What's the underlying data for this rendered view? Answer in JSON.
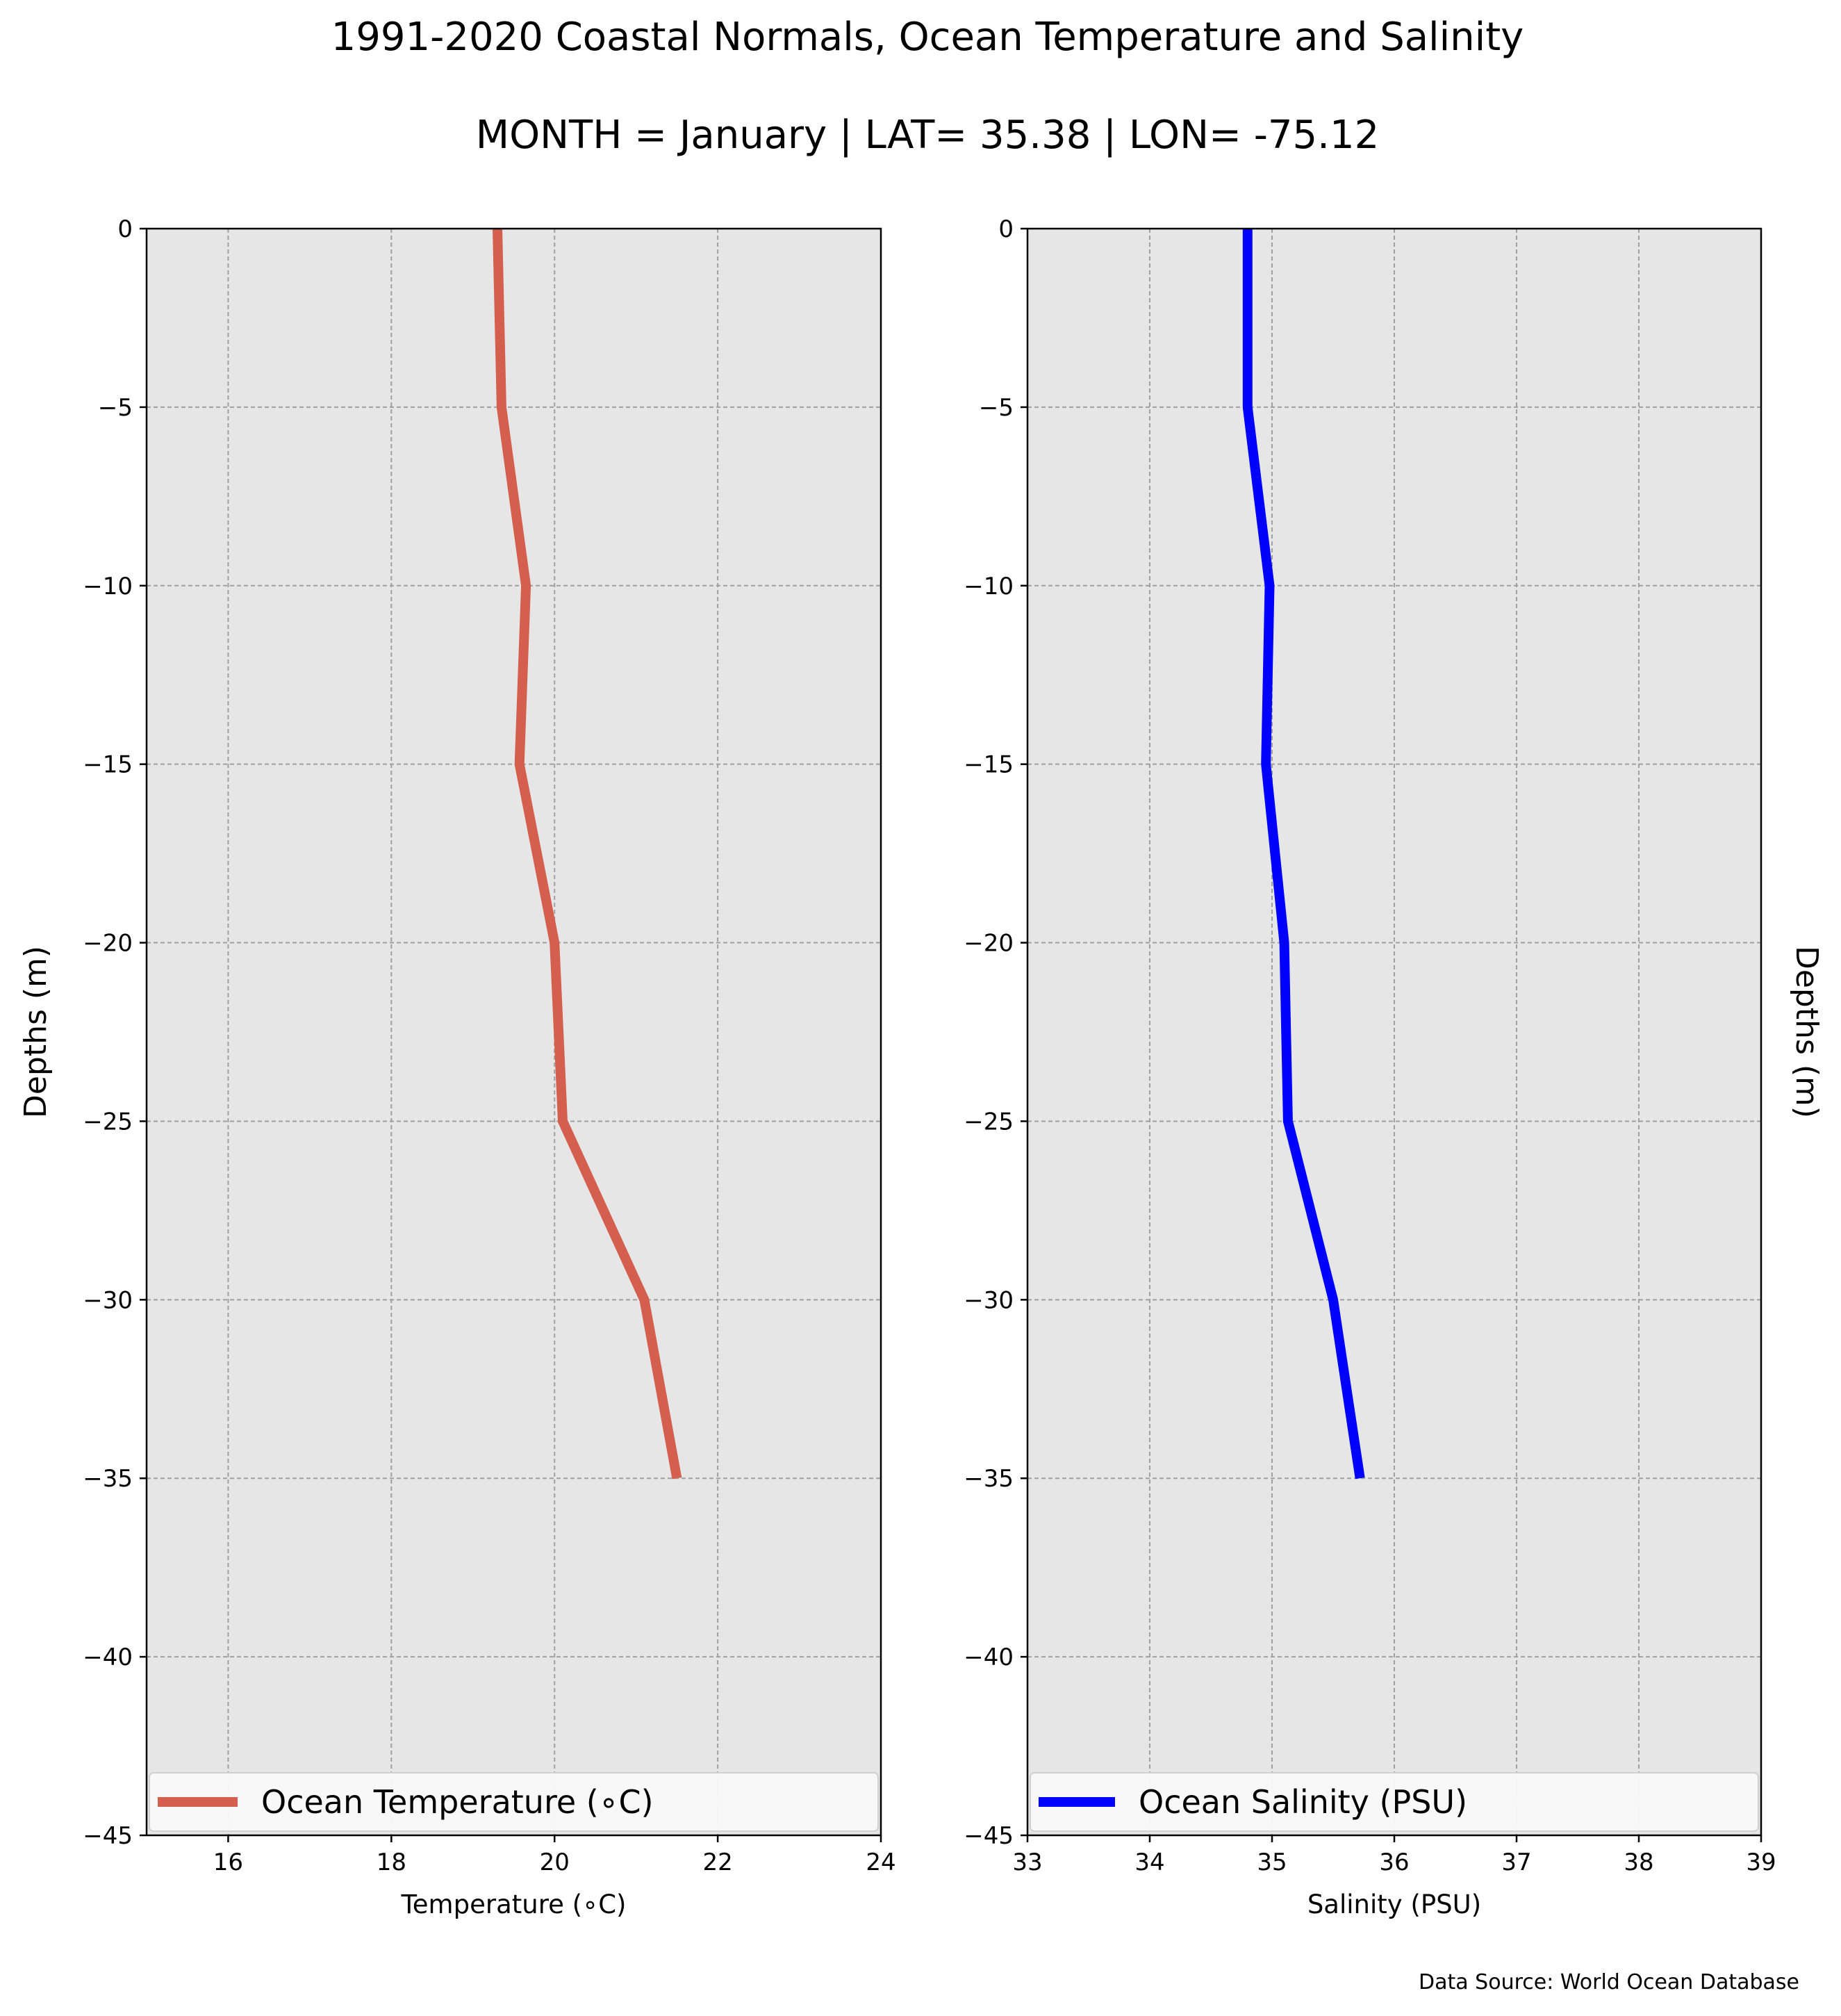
{
  "figure": {
    "title": "1991-2020 Coastal Normals, Ocean Temperature and Salinity",
    "subtitle": "MONTH = January | LAT= 35.38 | LON= -75.12",
    "source_note": "Data Source: World Ocean Database",
    "plot_background": "#e6e6e6",
    "grid_color": "#a0a0a0"
  },
  "chart_data": [
    {
      "type": "line",
      "xlabel": "Temperature ($^\\circ$C)",
      "xlabel_display": "Temperature (∘C)",
      "ylabel": "Depths (m)",
      "xlim": [
        15,
        24
      ],
      "ylim": [
        -45,
        0
      ],
      "xticks": [
        16,
        18,
        20,
        22,
        24
      ],
      "yticks": [
        0,
        -5,
        -10,
        -15,
        -20,
        -25,
        -30,
        -35,
        -40,
        -45
      ],
      "ytick_labels": [
        "0",
        "−5",
        "−10",
        "−15",
        "−20",
        "−25",
        "−30",
        "−35",
        "−40",
        "−45"
      ],
      "grid": true,
      "legend_placement": "bottom",
      "series": [
        {
          "name": "Ocean Temperature (∘C)",
          "color": "#d45f4e",
          "x": [
            19.3,
            19.35,
            19.65,
            19.57,
            20.0,
            20.1,
            21.1,
            21.5
          ],
          "y": [
            0,
            -5,
            -10,
            -15,
            -20,
            -25,
            -30,
            -35
          ]
        }
      ]
    },
    {
      "type": "line",
      "xlabel": "Salinity (PSU)",
      "ylabel": "Depths (m)",
      "xlim": [
        33,
        39
      ],
      "ylim": [
        -45,
        0
      ],
      "xticks": [
        33,
        34,
        35,
        36,
        37,
        38,
        39
      ],
      "yticks": [
        0,
        -5,
        -10,
        -15,
        -20,
        -25,
        -30,
        -35,
        -40,
        -45
      ],
      "ytick_labels": [
        "0",
        "−5",
        "−10",
        "−15",
        "−20",
        "−25",
        "−30",
        "−35",
        "−40",
        "−45"
      ],
      "grid": true,
      "legend_placement": "bottom",
      "series": [
        {
          "name": "Ocean Salinity (PSU)",
          "color": "#0000ff",
          "x": [
            34.8,
            34.8,
            34.98,
            34.95,
            35.1,
            35.13,
            35.5,
            35.72
          ],
          "y": [
            0,
            -5,
            -10,
            -15,
            -20,
            -25,
            -30,
            -35
          ]
        }
      ]
    }
  ]
}
